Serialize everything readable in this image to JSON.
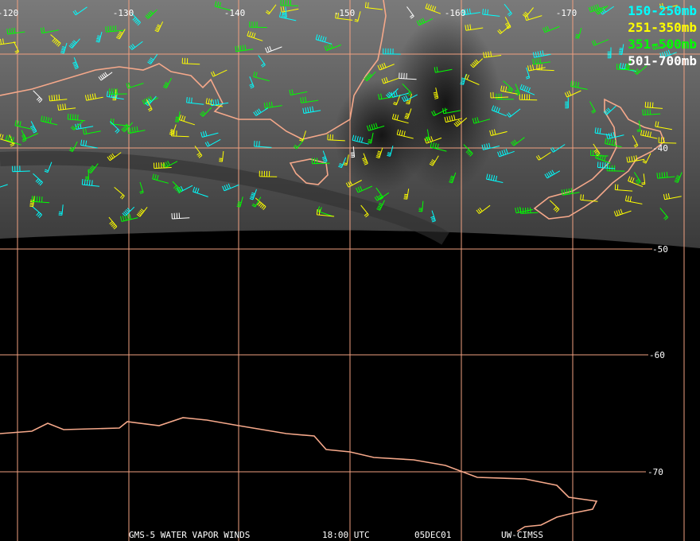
{
  "longitude_labels": [
    "-120",
    "-130",
    "-140",
    "-150",
    "-160",
    "-170"
  ],
  "latitude_labels": [
    "-40",
    "-50",
    "-60",
    "-70"
  ],
  "legend": [
    "150-250mb",
    "251-350mb",
    "351-500mb",
    "501-700mb"
  ],
  "footer": {
    "satellite": "GMS-5 WATER VAPOR WINDS",
    "time": "18:00 UTC",
    "date": "05DEC01",
    "source": "UW-CIMSS"
  }
}
